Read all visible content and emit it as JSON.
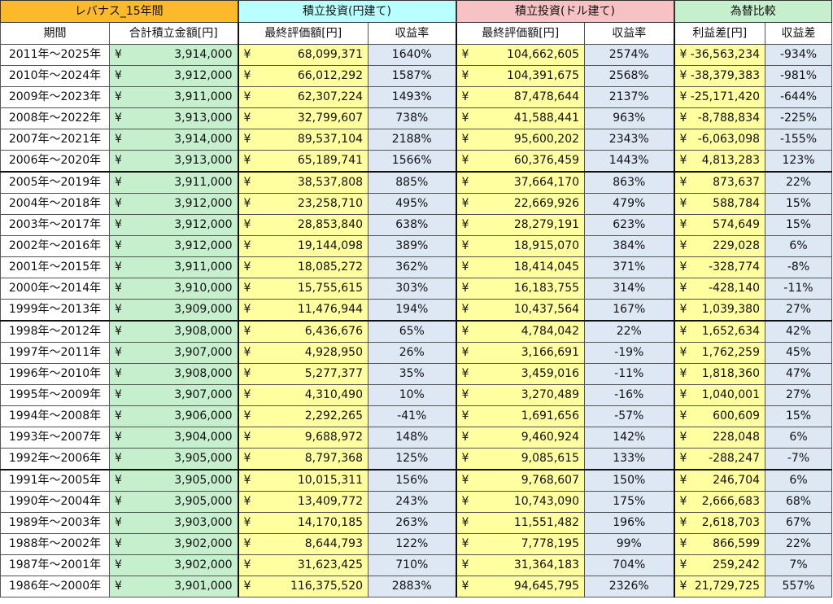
{
  "headers": {
    "group": [
      "レバナス_15年間",
      "積立投資(円建て)",
      "積立投資(ドル建て)",
      "為替比較"
    ],
    "columns": [
      "期間",
      "合計積立金額[円]",
      "最終評価額[円]",
      "収益率",
      "最終評価額[円]",
      "収益率",
      "利益差[円]",
      "収益差"
    ]
  },
  "yen_symbol": "¥",
  "rows": [
    {
      "period": "2011年～2025年",
      "total": "3,914,000",
      "jpy_value": "68,099,371",
      "jpy_rate": "1640%",
      "usd_value": "104,662,605",
      "usd_rate": "2574%",
      "diff": "-36,563,234",
      "diff_rate": "-934%"
    },
    {
      "period": "2010年～2024年",
      "total": "3,912,000",
      "jpy_value": "66,012,292",
      "jpy_rate": "1587%",
      "usd_value": "104,391,675",
      "usd_rate": "2568%",
      "diff": "-38,379,383",
      "diff_rate": "-981%"
    },
    {
      "period": "2009年～2023年",
      "total": "3,911,000",
      "jpy_value": "62,307,224",
      "jpy_rate": "1493%",
      "usd_value": "87,478,644",
      "usd_rate": "2137%",
      "diff": "-25,171,420",
      "diff_rate": "-644%"
    },
    {
      "period": "2008年～2022年",
      "total": "3,913,000",
      "jpy_value": "32,799,607",
      "jpy_rate": "738%",
      "usd_value": "41,588,441",
      "usd_rate": "963%",
      "diff": "-8,788,834",
      "diff_rate": "-225%"
    },
    {
      "period": "2007年～2021年",
      "total": "3,914,000",
      "jpy_value": "89,537,104",
      "jpy_rate": "2188%",
      "usd_value": "95,600,202",
      "usd_rate": "2343%",
      "diff": "-6,063,098",
      "diff_rate": "-155%"
    },
    {
      "period": "2006年～2020年",
      "total": "3,913,000",
      "jpy_value": "65,189,741",
      "jpy_rate": "1566%",
      "usd_value": "60,376,459",
      "usd_rate": "1443%",
      "diff": "4,813,283",
      "diff_rate": "123%"
    },
    {
      "period": "2005年～2019年",
      "total": "3,911,000",
      "jpy_value": "38,537,808",
      "jpy_rate": "885%",
      "usd_value": "37,664,170",
      "usd_rate": "863%",
      "diff": "873,637",
      "diff_rate": "22%"
    },
    {
      "period": "2004年～2018年",
      "total": "3,912,000",
      "jpy_value": "23,258,710",
      "jpy_rate": "495%",
      "usd_value": "22,669,926",
      "usd_rate": "479%",
      "diff": "588,784",
      "diff_rate": "15%"
    },
    {
      "period": "2003年～2017年",
      "total": "3,912,000",
      "jpy_value": "28,853,840",
      "jpy_rate": "638%",
      "usd_value": "28,279,191",
      "usd_rate": "623%",
      "diff": "574,649",
      "diff_rate": "15%"
    },
    {
      "period": "2002年～2016年",
      "total": "3,912,000",
      "jpy_value": "19,144,098",
      "jpy_rate": "389%",
      "usd_value": "18,915,070",
      "usd_rate": "384%",
      "diff": "229,028",
      "diff_rate": "6%"
    },
    {
      "period": "2001年～2015年",
      "total": "3,911,000",
      "jpy_value": "18,085,272",
      "jpy_rate": "362%",
      "usd_value": "18,414,045",
      "usd_rate": "371%",
      "diff": "-328,774",
      "diff_rate": "-8%"
    },
    {
      "period": "2000年～2014年",
      "total": "3,910,000",
      "jpy_value": "15,755,615",
      "jpy_rate": "303%",
      "usd_value": "16,183,755",
      "usd_rate": "314%",
      "diff": "-428,140",
      "diff_rate": "-11%"
    },
    {
      "period": "1999年～2013年",
      "total": "3,909,000",
      "jpy_value": "11,476,944",
      "jpy_rate": "194%",
      "usd_value": "10,437,564",
      "usd_rate": "167%",
      "diff": "1,039,380",
      "diff_rate": "27%"
    },
    {
      "period": "1998年～2012年",
      "total": "3,908,000",
      "jpy_value": "6,436,676",
      "jpy_rate": "65%",
      "usd_value": "4,784,042",
      "usd_rate": "22%",
      "diff": "1,652,634",
      "diff_rate": "42%"
    },
    {
      "period": "1997年～2011年",
      "total": "3,907,000",
      "jpy_value": "4,928,950",
      "jpy_rate": "26%",
      "usd_value": "3,166,691",
      "usd_rate": "-19%",
      "diff": "1,762,259",
      "diff_rate": "45%"
    },
    {
      "period": "1996年～2010年",
      "total": "3,908,000",
      "jpy_value": "5,277,377",
      "jpy_rate": "35%",
      "usd_value": "3,459,016",
      "usd_rate": "-11%",
      "diff": "1,818,360",
      "diff_rate": "47%"
    },
    {
      "period": "1995年～2009年",
      "total": "3,907,000",
      "jpy_value": "4,310,490",
      "jpy_rate": "10%",
      "usd_value": "3,270,489",
      "usd_rate": "-16%",
      "diff": "1,040,001",
      "diff_rate": "27%"
    },
    {
      "period": "1994年～2008年",
      "total": "3,906,000",
      "jpy_value": "2,292,265",
      "jpy_rate": "-41%",
      "usd_value": "1,691,656",
      "usd_rate": "-57%",
      "diff": "600,609",
      "diff_rate": "15%"
    },
    {
      "period": "1993年～2007年",
      "total": "3,904,000",
      "jpy_value": "9,688,972",
      "jpy_rate": "148%",
      "usd_value": "9,460,924",
      "usd_rate": "142%",
      "diff": "228,048",
      "diff_rate": "6%"
    },
    {
      "period": "1992年～2006年",
      "total": "3,905,000",
      "jpy_value": "8,797,368",
      "jpy_rate": "125%",
      "usd_value": "9,085,615",
      "usd_rate": "133%",
      "diff": "-288,247",
      "diff_rate": "-7%"
    },
    {
      "period": "1991年～2005年",
      "total": "3,905,000",
      "jpy_value": "10,015,311",
      "jpy_rate": "156%",
      "usd_value": "9,768,607",
      "usd_rate": "150%",
      "diff": "246,704",
      "diff_rate": "6%"
    },
    {
      "period": "1990年～2004年",
      "total": "3,905,000",
      "jpy_value": "13,409,772",
      "jpy_rate": "243%",
      "usd_value": "10,743,090",
      "usd_rate": "175%",
      "diff": "2,666,683",
      "diff_rate": "68%"
    },
    {
      "period": "1989年～2003年",
      "total": "3,903,000",
      "jpy_value": "14,170,185",
      "jpy_rate": "263%",
      "usd_value": "11,551,482",
      "usd_rate": "196%",
      "diff": "2,618,703",
      "diff_rate": "67%"
    },
    {
      "period": "1988年～2002年",
      "total": "3,902,000",
      "jpy_value": "8,644,793",
      "jpy_rate": "122%",
      "usd_value": "7,778,195",
      "usd_rate": "99%",
      "diff": "866,599",
      "diff_rate": "22%"
    },
    {
      "period": "1987年～2001年",
      "total": "3,902,000",
      "jpy_value": "31,623,425",
      "jpy_rate": "710%",
      "usd_value": "31,364,183",
      "usd_rate": "704%",
      "diff": "259,242",
      "diff_rate": "7%"
    },
    {
      "period": "1986年～2000年",
      "total": "3,901,000",
      "jpy_value": "116,375,520",
      "jpy_rate": "2883%",
      "usd_value": "94,645,795",
      "usd_rate": "2326%",
      "diff": "21,729,725",
      "diff_rate": "557%"
    }
  ]
}
